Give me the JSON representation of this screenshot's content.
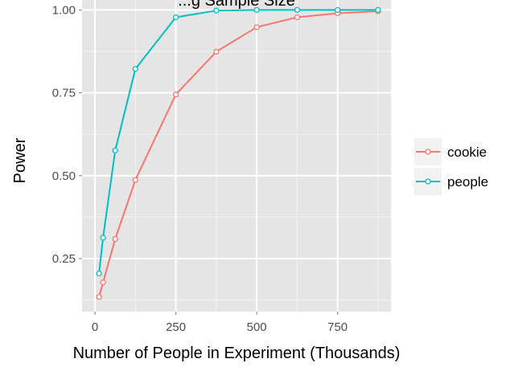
{
  "chart_data": {
    "type": "line",
    "title": "...g Sample Size",
    "xlabel": "Number of People in Experiment (Thousands)",
    "ylabel": "Power",
    "xlim": [
      -40,
      915
    ],
    "ylim": [
      0.09,
      1.03
    ],
    "x_ticks": [
      0,
      250,
      500,
      750
    ],
    "x_tick_labels": [
      "0",
      "250",
      "500",
      "750"
    ],
    "y_ticks": [
      0.25,
      0.5,
      0.75,
      1.0
    ],
    "y_tick_labels": [
      "0.25",
      "0.50",
      "0.75",
      "1.00"
    ],
    "grid": true,
    "legend_position": "right",
    "series": [
      {
        "name": "cookie",
        "color": "#f8766d",
        "x": [
          12.5,
          25,
          62.5,
          125,
          250,
          375,
          500,
          625,
          750,
          875
        ],
        "y": [
          0.134,
          0.178,
          0.309,
          0.487,
          0.745,
          0.874,
          0.948,
          0.978,
          0.99,
          0.996
        ]
      },
      {
        "name": "people",
        "color": "#00bfc4",
        "x": [
          12.5,
          25,
          62.5,
          125,
          250,
          375,
          500,
          625,
          750,
          875
        ],
        "y": [
          0.205,
          0.313,
          0.576,
          0.822,
          0.978,
          0.998,
          1.0,
          1.0,
          1.0,
          1.0
        ]
      }
    ]
  }
}
